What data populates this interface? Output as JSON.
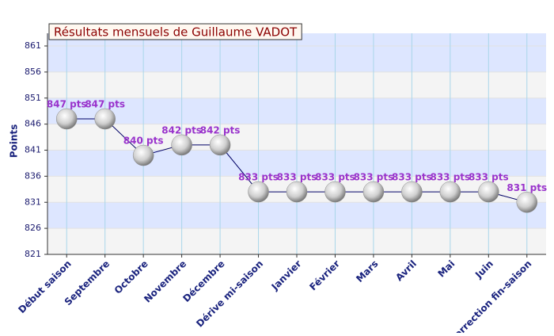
{
  "chart_data": {
    "type": "line",
    "title": "Résultats mensuels de Guillaume VADOT",
    "y_label": "Points",
    "categories": [
      "Début saison",
      "Septembre",
      "Octobre",
      "Novembre",
      "Décembre",
      "Dérive mi-saison",
      "Janvier",
      "Février",
      "Mars",
      "Avril",
      "Mai",
      "Juin",
      "Correction fin-saison"
    ],
    "values": [
      847,
      847,
      840,
      842,
      842,
      833,
      833,
      833,
      833,
      833,
      833,
      833,
      831
    ],
    "value_labels": [
      "847 pts",
      "847 pts",
      "840 pts",
      "842 pts",
      "842 pts",
      "833 pts",
      "833 pts",
      "833 pts",
      "833 pts",
      "833 pts",
      "833 pts",
      "833 pts",
      "831 pts"
    ],
    "color": "#000066",
    "ylim": [
      821,
      861
    ],
    "yticks": [
      821,
      826,
      831,
      836,
      841,
      846,
      851,
      856,
      861
    ],
    "grid": true
  }
}
